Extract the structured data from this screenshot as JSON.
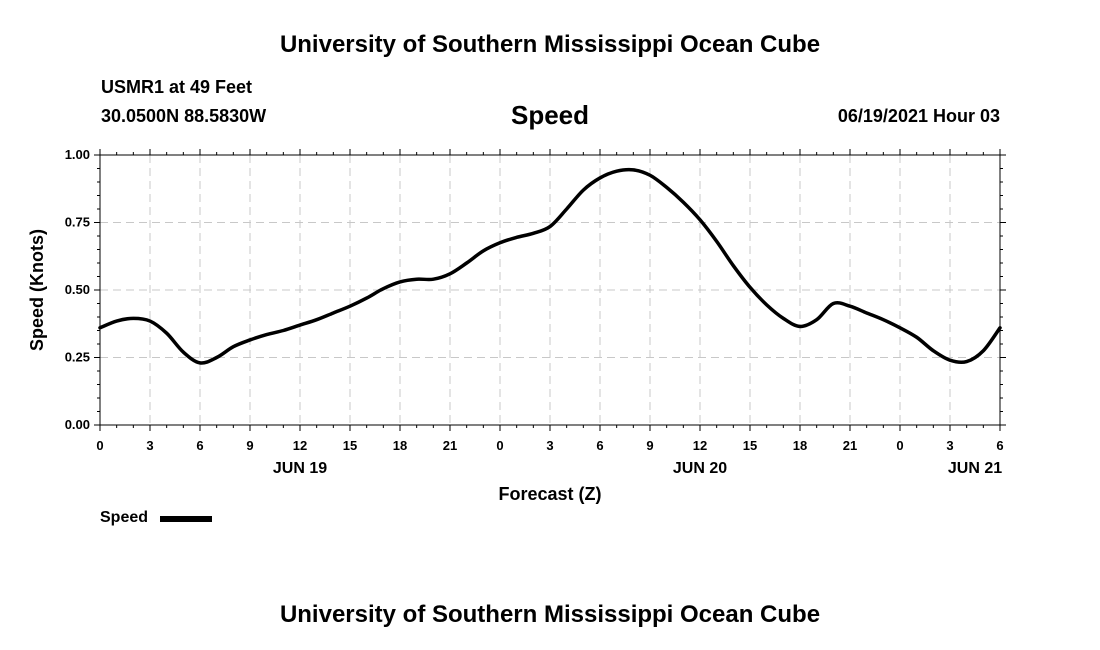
{
  "header": {
    "title_top": "University of Southern Mississippi Ocean Cube",
    "title_bottom": "University of Southern Mississippi Ocean Cube",
    "station": "USMR1 at 49 Feet",
    "coords": "30.0500N  88.5830W",
    "variable": "Speed",
    "datetime": "06/19/2021 Hour 03"
  },
  "legend": {
    "label": "Speed"
  },
  "chart_data": {
    "type": "line",
    "title": "Speed",
    "xlabel": "Forecast (Z)",
    "ylabel": "Speed (Knots)",
    "xlim": [
      0,
      54
    ],
    "ylim": [
      0,
      1
    ],
    "yticks": [
      0,
      0.25,
      0.5,
      0.75,
      1.0
    ],
    "ytick_labels": [
      "0.00",
      "0.25",
      "0.50",
      "0.75",
      "1.00"
    ],
    "xticks": [
      0,
      3,
      6,
      9,
      12,
      15,
      18,
      21,
      24,
      27,
      30,
      33,
      36,
      39,
      42,
      45,
      48,
      51,
      54
    ],
    "xtick_labels": [
      "0",
      "3",
      "6",
      "9",
      "12",
      "15",
      "18",
      "21",
      "0",
      "3",
      "6",
      "9",
      "12",
      "15",
      "18",
      "21",
      "0",
      "3",
      "6"
    ],
    "day_labels": [
      {
        "x": 12,
        "label": "JUN 19"
      },
      {
        "x": 36,
        "label": "JUN 20"
      },
      {
        "x": 52.5,
        "label": "JUN 21"
      }
    ],
    "grid": true,
    "series": [
      {
        "name": "Speed",
        "color": "#000000",
        "x": [
          0,
          1,
          2,
          3,
          4,
          5,
          6,
          7,
          8,
          9,
          10,
          11,
          12,
          13,
          14,
          15,
          16,
          17,
          18,
          19,
          20,
          21,
          22,
          23,
          24,
          25,
          26,
          27,
          28,
          29,
          30,
          31,
          32,
          33,
          34,
          35,
          36,
          37,
          38,
          39,
          40,
          41,
          42,
          43,
          44,
          45,
          46,
          47,
          48,
          49,
          50,
          51,
          52,
          53,
          54
        ],
        "y": [
          0.36,
          0.385,
          0.395,
          0.385,
          0.34,
          0.27,
          0.23,
          0.25,
          0.29,
          0.315,
          0.335,
          0.35,
          0.37,
          0.39,
          0.415,
          0.44,
          0.47,
          0.505,
          0.53,
          0.54,
          0.54,
          0.56,
          0.6,
          0.645,
          0.675,
          0.695,
          0.71,
          0.735,
          0.8,
          0.87,
          0.915,
          0.94,
          0.945,
          0.925,
          0.88,
          0.825,
          0.76,
          0.68,
          0.59,
          0.51,
          0.445,
          0.395,
          0.365,
          0.39,
          0.45,
          0.44,
          0.415,
          0.39,
          0.36,
          0.325,
          0.275,
          0.24,
          0.235,
          0.275,
          0.36
        ]
      }
    ]
  }
}
